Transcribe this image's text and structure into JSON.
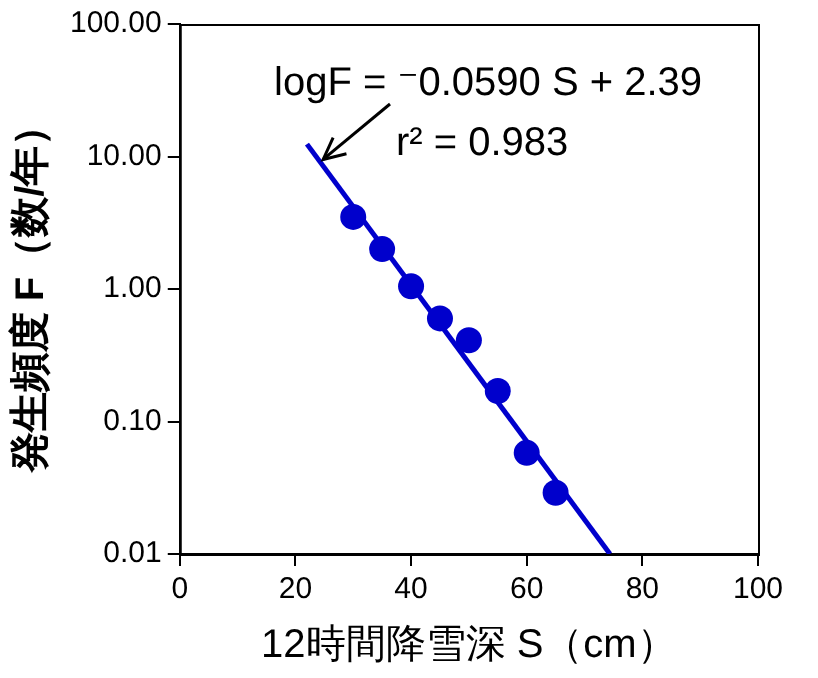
{
  "chart_data": {
    "type": "scatter",
    "xlabel": "12時間降雪深 S（cm）",
    "ylabel": "発生頻度 F（数/年）",
    "x": [
      30,
      35,
      40,
      45,
      50,
      55,
      60,
      65
    ],
    "series": [
      {
        "type": "scatter",
        "marker": "circle",
        "color": "#0000cc",
        "values": [
          3.5,
          2.0,
          1.05,
          0.6,
          0.41,
          0.17,
          0.058,
          0.029
        ]
      },
      {
        "type": "line",
        "marker": "none",
        "color": "#0000cc",
        "x": [
          22,
          74.4
        ],
        "values": [
          12.4,
          0.01
        ]
      }
    ],
    "annotations": [
      {
        "text": "logF = ⁻0.0590 S + 2.39",
        "x": 24.8,
        "y": 9.5
      },
      "r² = 0.983"
    ],
    "xlim": [
      0,
      100
    ],
    "xticks": [
      0,
      20,
      40,
      60,
      80,
      100
    ],
    "ylim": [
      0.01,
      100
    ],
    "yticks": [
      {
        "value": 0.01,
        "label": "0.01"
      },
      {
        "value": 0.1,
        "label": "0.10"
      },
      {
        "value": 1,
        "label": "1.00"
      },
      {
        "value": 10,
        "label": "10.00"
      },
      {
        "value": 100,
        "label": "100.00"
      }
    ],
    "log": "y",
    "grid": false,
    "legend": false,
    "line_style": "solid"
  }
}
